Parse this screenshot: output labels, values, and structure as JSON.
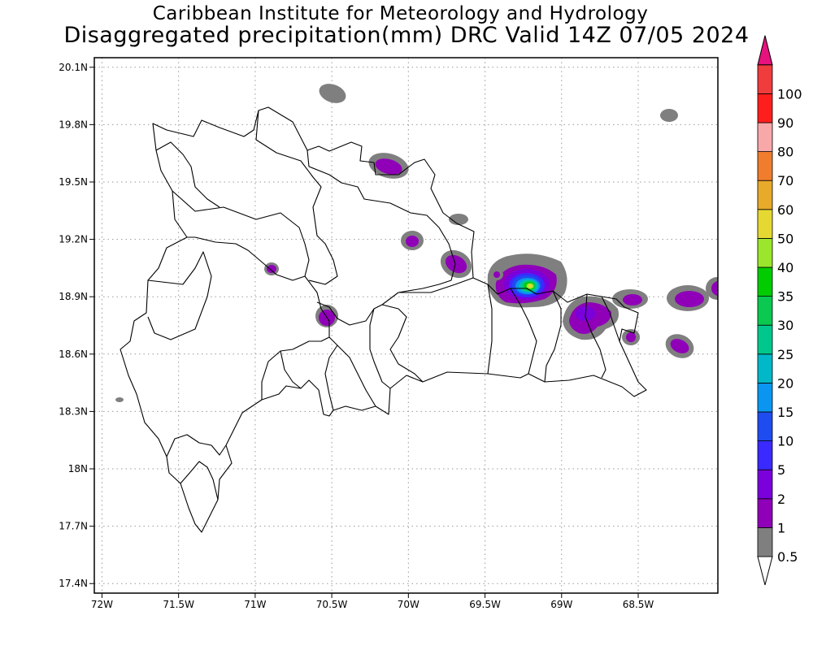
{
  "header": {
    "line1": "Caribbean Institute for Meteorology and Hydrology",
    "line2": "Disaggregated precipitation(mm) DRC Valid 14Z 07/05 2024"
  },
  "map": {
    "units": "mm",
    "lon_range": [
      -72.05,
      -67.98
    ],
    "lat_range": [
      17.35,
      20.15
    ],
    "lat_ticks": [
      {
        "value": 20.1,
        "label": "20.1N"
      },
      {
        "value": 19.8,
        "label": "19.8N"
      },
      {
        "value": 19.5,
        "label": "19.5N"
      },
      {
        "value": 19.2,
        "label": "19.2N"
      },
      {
        "value": 18.9,
        "label": "18.9N"
      },
      {
        "value": 18.6,
        "label": "18.6N"
      },
      {
        "value": 18.3,
        "label": "18.3N"
      },
      {
        "value": 18.0,
        "label": "18N"
      },
      {
        "value": 17.7,
        "label": "17.7N"
      },
      {
        "value": 17.4,
        "label": "17.4N"
      }
    ],
    "lon_ticks": [
      {
        "value": -72.0,
        "label": "72W"
      },
      {
        "value": -71.5,
        "label": "71.5W"
      },
      {
        "value": -71.0,
        "label": "71W"
      },
      {
        "value": -70.5,
        "label": "70.5W"
      },
      {
        "value": -70.0,
        "label": "70W"
      },
      {
        "value": -69.5,
        "label": "69.5W"
      },
      {
        "value": -69.0,
        "label": "69W"
      },
      {
        "value": -68.5,
        "label": "68.5W"
      }
    ],
    "grid": "dotted",
    "precip_cells": [
      {
        "lon": -70.49,
        "lat": 20.03,
        "max_mm": 0.5
      },
      {
        "lon": -70.17,
        "lat": 19.58,
        "max_mm": 2
      },
      {
        "lon": -70.02,
        "lat": 19.17,
        "max_mm": 2
      },
      {
        "lon": -69.75,
        "lat": 19.07,
        "max_mm": 2
      },
      {
        "lon": -69.78,
        "lat": 19.31,
        "max_mm": 1
      },
      {
        "lon": -70.95,
        "lat": 19.04,
        "max_mm": 2
      },
      {
        "lon": -70.59,
        "lat": 18.81,
        "max_mm": 2
      },
      {
        "lon": -69.27,
        "lat": 18.95,
        "max_mm": 40
      },
      {
        "lon": -68.89,
        "lat": 18.79,
        "max_mm": 5
      },
      {
        "lon": -68.61,
        "lat": 18.89,
        "max_mm": 2
      },
      {
        "lon": -68.67,
        "lat": 18.68,
        "max_mm": 2
      },
      {
        "lon": -68.21,
        "lat": 18.64,
        "max_mm": 2
      },
      {
        "lon": -68.16,
        "lat": 18.91,
        "max_mm": 2
      },
      {
        "lon": -67.98,
        "lat": 18.93,
        "max_mm": 2
      },
      {
        "lon": -68.33,
        "lat": 19.88,
        "max_mm": 0.5
      },
      {
        "lon": -72.0,
        "lat": 18.35,
        "max_mm": 0.5
      }
    ]
  },
  "colorbar": {
    "levels": [
      "0.5",
      "1",
      "2",
      "5",
      "10",
      "15",
      "20",
      "25",
      "30",
      "35",
      "40",
      "50",
      "60",
      "70",
      "80",
      "90",
      "100"
    ],
    "colors": [
      "#ffffff",
      "#7f7f7f",
      "#8f00b8",
      "#7a00dc",
      "#3a2aff",
      "#1f4cf0",
      "#0a96f0",
      "#00b8c8",
      "#00c88c",
      "#0ac850",
      "#00cc00",
      "#9be62d",
      "#e6d832",
      "#e8aa2b",
      "#f07d2d",
      "#f8a8a8",
      "#ff1e1e",
      "#f03c3c",
      "#e6127d"
    ]
  }
}
